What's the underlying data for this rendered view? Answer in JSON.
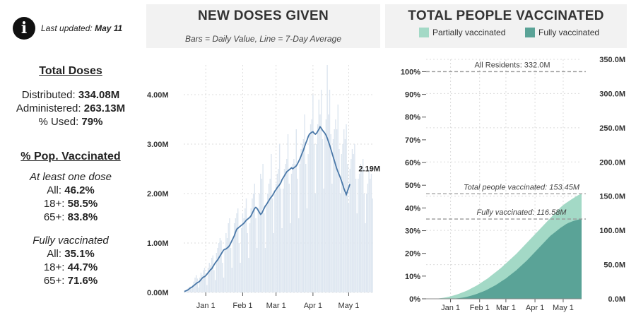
{
  "info": {
    "icon": "info-icon",
    "updated_label": "Last updated:",
    "updated_date": "May 11"
  },
  "total_doses": {
    "heading": "Total Doses",
    "distributed_label": "Distributed:",
    "distributed_value": "334.08M",
    "administered_label": "Administered:",
    "administered_value": "263.13M",
    "used_label": "% Used:",
    "used_value": "79%"
  },
  "pop_vaccinated": {
    "heading": "% Pop. Vaccinated",
    "one_dose_label": "At least one dose",
    "one_dose": [
      {
        "label": "All:",
        "value": "46.2%"
      },
      {
        "label": "18+:",
        "value": "58.5%"
      },
      {
        "label": "65+:",
        "value": "83.8%"
      }
    ],
    "fully_label": "Fully vaccinated",
    "fully": [
      {
        "label": "All:",
        "value": "35.1%"
      },
      {
        "label": "18+:",
        "value": "44.7%"
      },
      {
        "label": "65+:",
        "value": "71.6%"
      }
    ]
  },
  "chart_data": [
    {
      "type": "bar",
      "title": "NEW DOSES GIVEN",
      "subtitle": "Bars = Daily Value, Line = 7-Day Average",
      "x_tick_labels": [
        "Jan 1",
        "Feb 1",
        "Mar 1",
        "Apr 1",
        "May 1"
      ],
      "y_tick_labels": [
        "0.00M",
        "1.00M",
        "2.00M",
        "3.00M",
        "4.00M"
      ],
      "ylim": [
        0,
        4.6
      ],
      "x_range": [
        "Dec 14",
        "May 10"
      ],
      "end_label": "2.19M",
      "colors": {
        "bars": "#dde6f0",
        "line": "#4a78a8"
      },
      "grid": true,
      "series": [
        {
          "name": "Daily Value",
          "kind": "bar",
          "values": [
            0.02,
            0.04,
            0.06,
            0.08,
            0.1,
            0.12,
            0.08,
            0.15,
            0.22,
            0.3,
            0.35,
            0.28,
            0.1,
            0.3,
            0.4,
            0.35,
            0.45,
            0.5,
            0.3,
            0.15,
            0.5,
            0.6,
            0.55,
            0.7,
            0.75,
            0.45,
            0.25,
            0.8,
            0.9,
            1.0,
            1.1,
            1.05,
            0.6,
            0.3,
            0.9,
            1.2,
            1.1,
            1.4,
            1.5,
            0.9,
            0.5,
            1.1,
            1.4,
            1.5,
            1.6,
            1.7,
            1.0,
            0.6,
            1.3,
            1.6,
            1.5,
            1.7,
            1.9,
            1.2,
            0.7,
            1.4,
            1.7,
            1.9,
            2.0,
            2.2,
            1.5,
            0.9,
            1.7,
            2.0,
            2.4,
            2.3,
            2.6,
            1.6,
            0.9,
            1.8,
            2.0,
            2.2,
            2.3,
            2.8,
            1.9,
            1.2,
            2.0,
            2.2,
            2.4,
            2.5,
            3.0,
            2.1,
            1.3,
            2.1,
            2.5,
            2.6,
            2.7,
            3.2,
            2.2,
            1.4,
            2.4,
            2.6,
            2.7,
            2.6,
            3.3,
            2.3,
            1.5,
            2.6,
            2.9,
            3.0,
            3.1,
            3.6,
            2.6,
            1.7,
            2.8,
            3.2,
            3.4,
            3.5,
            4.0,
            3.0,
            2.0,
            3.0,
            3.4,
            3.9,
            3.6,
            4.1,
            3.1,
            2.1,
            3.2,
            3.5,
            4.6,
            3.6,
            4.1,
            3.2,
            2.2,
            3.1,
            3.3,
            3.5,
            3.3,
            3.8,
            2.9,
            2.0,
            2.8,
            3.0,
            3.3,
            3.1,
            3.4,
            2.6,
            1.8,
            2.5,
            2.7,
            2.9,
            2.8,
            3.0,
            2.3,
            1.6,
            2.3,
            2.4,
            2.6,
            2.5,
            2.7,
            2.0,
            1.4,
            2.0,
            2.2,
            2.5,
            2.3,
            2.4,
            1.9
          ]
        },
        {
          "name": "7-Day Average",
          "kind": "line",
          "values": [
            0.02,
            0.03,
            0.04,
            0.05,
            0.07,
            0.09,
            0.1,
            0.12,
            0.14,
            0.16,
            0.18,
            0.2,
            0.21,
            0.23,
            0.26,
            0.29,
            0.31,
            0.32,
            0.34,
            0.37,
            0.4,
            0.43,
            0.46,
            0.48,
            0.52,
            0.56,
            0.6,
            0.63,
            0.66,
            0.7,
            0.74,
            0.78,
            0.82,
            0.86,
            0.87,
            0.88,
            0.9,
            0.92,
            0.95,
            1.0,
            1.05,
            1.1,
            1.15,
            1.22,
            1.28,
            1.3,
            1.32,
            1.34,
            1.36,
            1.38,
            1.4,
            1.43,
            1.46,
            1.48,
            1.5,
            1.52,
            1.55,
            1.6,
            1.65,
            1.7,
            1.72,
            1.7,
            1.66,
            1.62,
            1.58,
            1.6,
            1.65,
            1.7,
            1.75,
            1.78,
            1.82,
            1.86,
            1.9,
            1.93,
            1.96,
            2.0,
            2.05,
            2.08,
            2.12,
            2.15,
            2.18,
            2.22,
            2.28,
            2.32,
            2.36,
            2.4,
            2.44,
            2.46,
            2.48,
            2.5,
            2.52,
            2.5,
            2.52,
            2.54,
            2.56,
            2.6,
            2.65,
            2.7,
            2.76,
            2.82,
            2.88,
            2.95,
            3.02,
            3.08,
            3.15,
            3.2,
            3.22,
            3.24,
            3.25,
            3.22,
            3.2,
            3.22,
            3.26,
            3.3,
            3.35,
            3.32,
            3.28,
            3.25,
            3.22,
            3.18,
            3.12,
            3.05,
            2.98,
            2.9,
            2.82,
            2.74,
            2.66,
            2.58,
            2.5,
            2.44,
            2.38,
            2.32,
            2.25,
            2.18,
            2.1,
            2.04,
            1.98,
            2.05,
            2.12,
            2.19
          ]
        }
      ]
    },
    {
      "type": "area",
      "title": "TOTAL PEOPLE VACCINATED",
      "legend_placement": "top",
      "x_tick_labels": [
        "Jan 1",
        "Feb 1",
        "Mar 1",
        "Apr 1",
        "May 1"
      ],
      "x_range": [
        "Dec 14",
        "May 10"
      ],
      "y_left_tick_labels": [
        "0%",
        "10%",
        "20%",
        "30%",
        "40%",
        "50%",
        "60%",
        "70%",
        "80%",
        "90%",
        "100%"
      ],
      "y_right_tick_labels": [
        "0.0M",
        "50.0M",
        "100.0M",
        "150.0M",
        "200.0M",
        "250.0M",
        "300.0M",
        "350.0M"
      ],
      "ylim_people_millions": [
        0,
        350
      ],
      "grid": true,
      "annotations": [
        {
          "text": "All Residents: 332.0M",
          "value_millions": 332.0
        },
        {
          "text": "Total people vaccinated: 153.45M",
          "value_millions": 153.45
        },
        {
          "text": "Fully vaccinated: 116.58M",
          "value_millions": 116.58
        }
      ],
      "colors": {
        "partial": "#a3d9c6",
        "full": "#5aa397",
        "reference": "#999999"
      },
      "series": [
        {
          "name": "Partially vaccinated",
          "values_millions": [
            0,
            0.2,
            0.5,
            1,
            1.5,
            2.2,
            3,
            4,
            5,
            6.2,
            7.5,
            9,
            10.5,
            12,
            14,
            16,
            18,
            20,
            22.5,
            25,
            27.5,
            30,
            33,
            36,
            39,
            42,
            45,
            48.5,
            52,
            55.5,
            59,
            62.5,
            66,
            70,
            74,
            78,
            82,
            86,
            90,
            94,
            98,
            102,
            106,
            110,
            114,
            118,
            122,
            126,
            130,
            134,
            137,
            140,
            142.5,
            145,
            147.5,
            150,
            152,
            153.45
          ]
        },
        {
          "name": "Fully vaccinated",
          "values_millions": [
            0,
            0,
            0,
            0,
            0,
            0,
            0,
            0.1,
            0.3,
            0.6,
            1,
            1.5,
            2.2,
            3,
            4,
            5,
            6.2,
            7.5,
            9,
            10.5,
            12,
            14,
            16,
            18,
            20,
            22.5,
            25,
            27.5,
            30,
            33,
            36,
            39,
            42,
            45.5,
            49,
            52.5,
            56,
            60,
            64,
            68,
            72,
            76,
            80,
            84,
            88,
            92,
            95,
            98,
            101,
            104,
            106.5,
            109,
            111,
            112.5,
            114,
            115,
            116,
            116.58
          ]
        }
      ]
    }
  ]
}
